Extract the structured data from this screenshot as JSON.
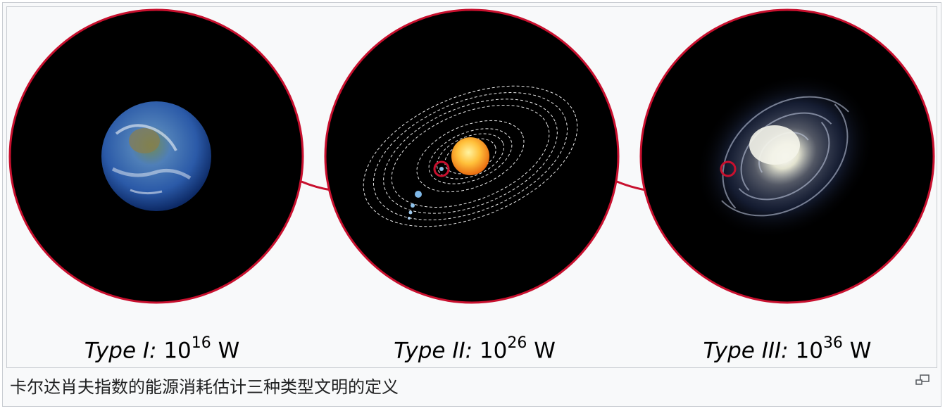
{
  "figure": {
    "labels": [
      {
        "type": "Type I:",
        "base": "10",
        "exp": "16",
        "unit": "W"
      },
      {
        "type": "Type II:",
        "base": "10",
        "exp": "26",
        "unit": "W"
      },
      {
        "type": "Type III:",
        "base": "10",
        "exp": "36",
        "unit": "W"
      }
    ],
    "colors": {
      "ring": "#c8102e",
      "panel_bg": "#000000",
      "frame_bg": "#f8f9fa",
      "frame_border": "#c8ccd1"
    },
    "icons": [
      "earth-image",
      "solar-system-image",
      "galaxy-image",
      "magnify-icon"
    ]
  },
  "caption": "卡尔达肖夫指数的能源消耗估计三种类型文明的定义"
}
